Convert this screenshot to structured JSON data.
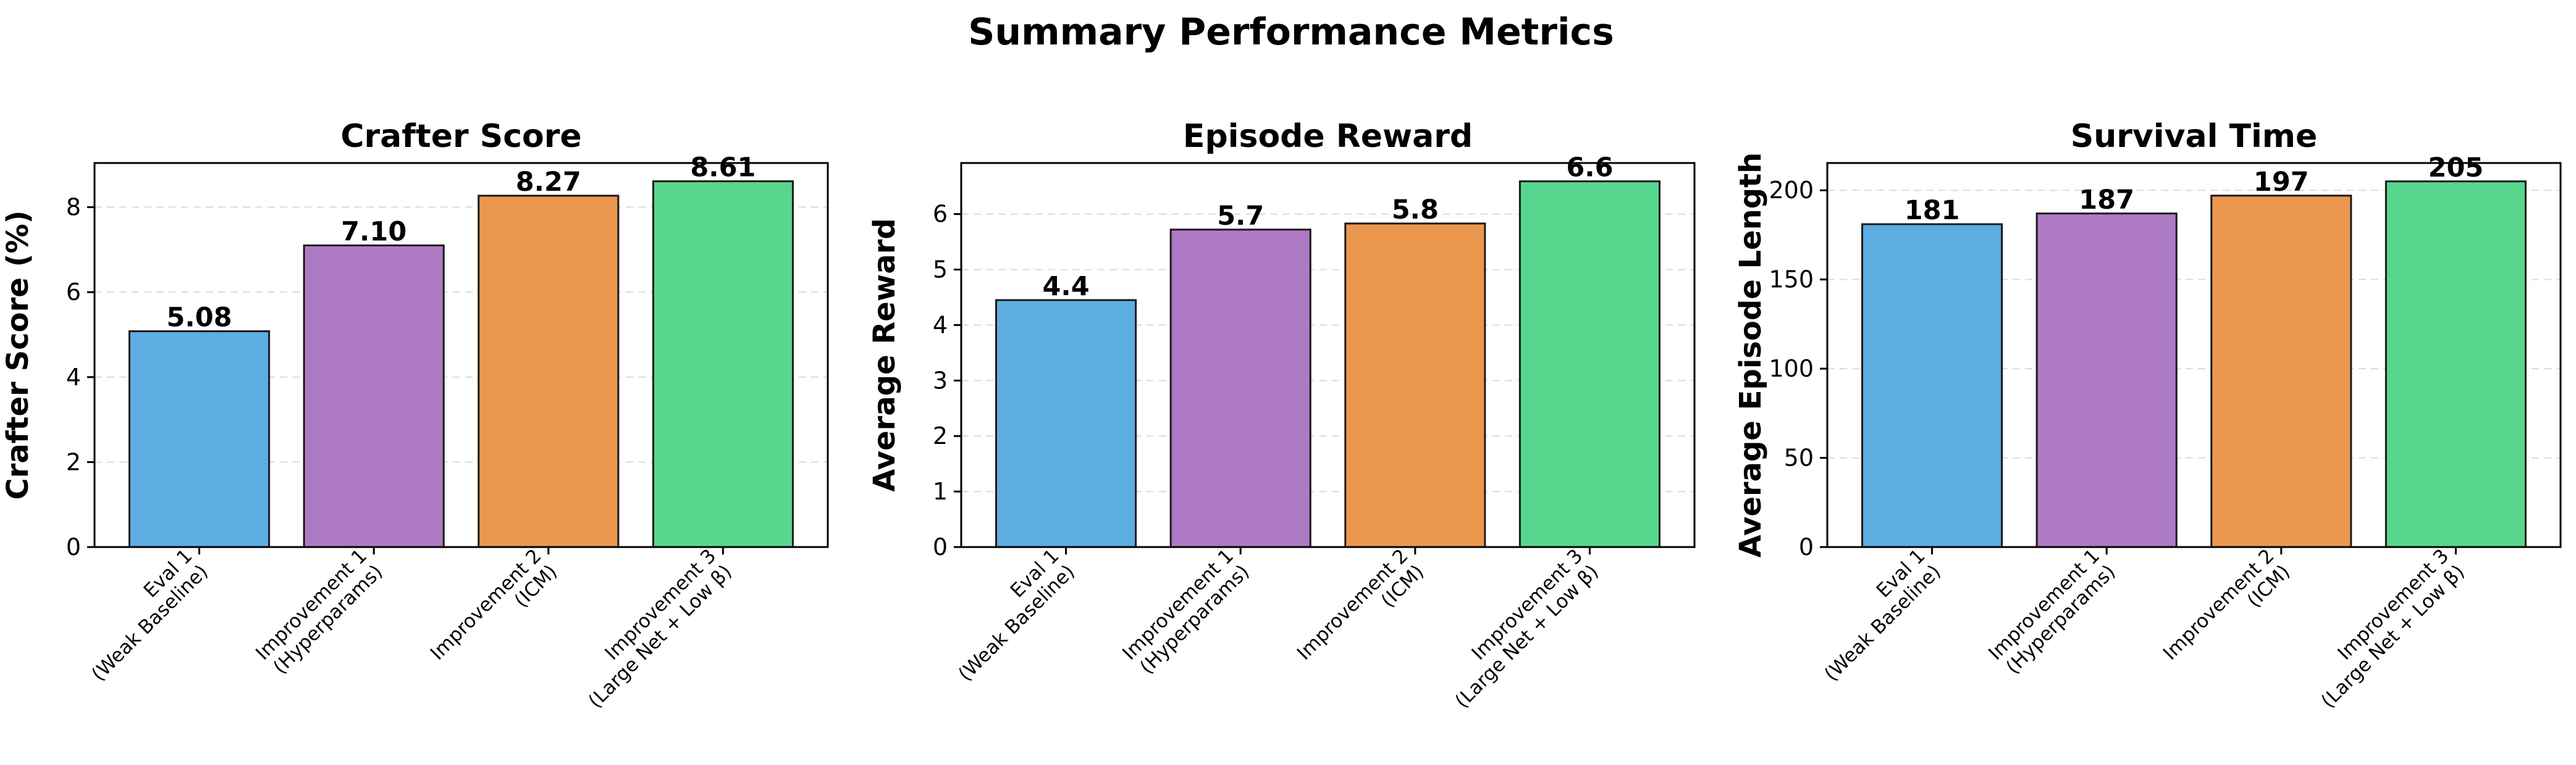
{
  "figure": {
    "title": "Summary Performance Metrics"
  },
  "chart_data": [
    {
      "type": "bar",
      "title": "Crafter Score",
      "xlabel": "",
      "ylabel": "Crafter Score (%)",
      "categories": [
        [
          "Eval 1",
          "(Weak Baseline)"
        ],
        [
          "Improvement 1",
          "(Hyperparams)"
        ],
        [
          "Improvement 2",
          "(ICM)"
        ],
        [
          "Improvement 3",
          "(Large Net + Low β)"
        ]
      ],
      "values": [
        5.08,
        7.1,
        8.27,
        8.61
      ],
      "value_labels": [
        "5.08",
        "7.10",
        "8.27",
        "8.61"
      ],
      "ylim": [
        0,
        9.04
      ],
      "yticks": [
        0,
        2,
        4,
        6,
        8
      ],
      "grid": true,
      "colors": [
        "#5DADE2",
        "#AF7AC5",
        "#EB984E",
        "#58D68D"
      ]
    },
    {
      "type": "bar",
      "title": "Episode Reward",
      "xlabel": "",
      "ylabel": "Average Reward",
      "categories": [
        [
          "Eval 1",
          "(Weak Baseline)"
        ],
        [
          "Improvement 1",
          "(Hyperparams)"
        ],
        [
          "Improvement 2",
          "(ICM)"
        ],
        [
          "Improvement 3",
          "(Large Net + Low β)"
        ]
      ],
      "values": [
        4.45,
        5.72,
        5.83,
        6.59
      ],
      "value_labels": [
        "4.4",
        "5.7",
        "5.8",
        "6.6"
      ],
      "ylim": [
        0,
        6.92
      ],
      "yticks": [
        0,
        1,
        2,
        3,
        4,
        5,
        6
      ],
      "grid": true,
      "colors": [
        "#5DADE2",
        "#AF7AC5",
        "#EB984E",
        "#58D68D"
      ]
    },
    {
      "type": "bar",
      "title": "Survival Time",
      "xlabel": "",
      "ylabel": "Average Episode Length",
      "categories": [
        [
          "Eval 1",
          "(Weak Baseline)"
        ],
        [
          "Improvement 1",
          "(Hyperparams)"
        ],
        [
          "Improvement 2",
          "(ICM)"
        ],
        [
          "Improvement 3",
          "(Large Net + Low β)"
        ]
      ],
      "values": [
        181,
        187,
        197,
        205
      ],
      "value_labels": [
        "181",
        "187",
        "197",
        "205"
      ],
      "ylim": [
        0,
        215.3
      ],
      "yticks": [
        0,
        50,
        100,
        150,
        200
      ],
      "grid": true,
      "colors": [
        "#5DADE2",
        "#AF7AC5",
        "#EB984E",
        "#58D68D"
      ]
    }
  ]
}
